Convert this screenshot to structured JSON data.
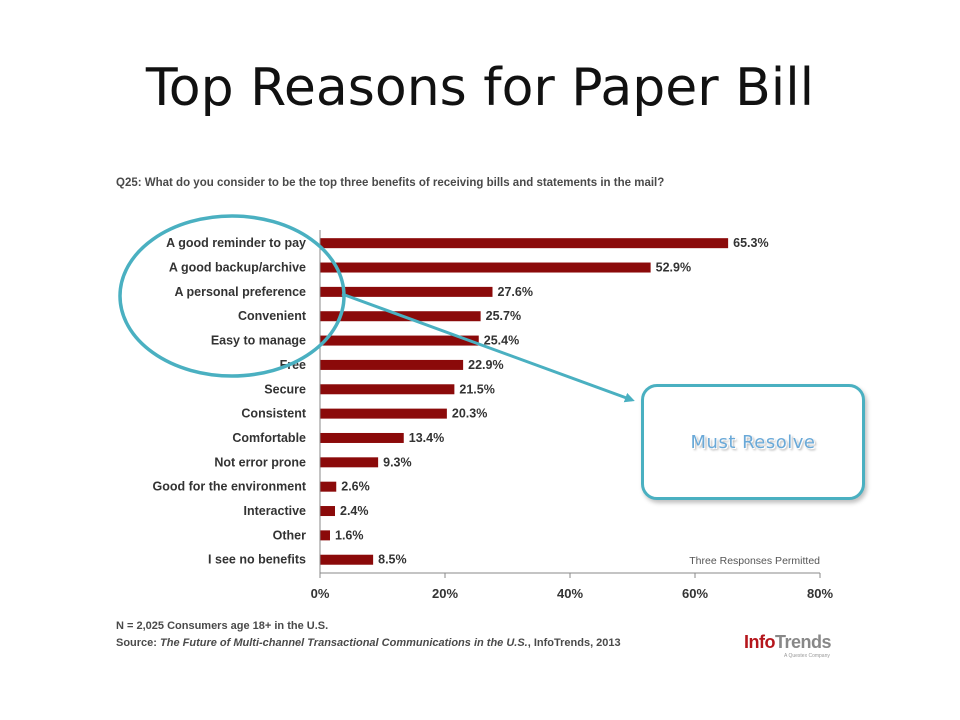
{
  "slide": {
    "title": "Top Reasons for Paper Bill"
  },
  "chart_data": {
    "type": "bar",
    "orientation": "horizontal",
    "question": "Q25: What do you consider to be the top three benefits of receiving bills and statements in the mail?",
    "categories": [
      "A good reminder to pay",
      "A good backup/archive",
      "A personal preference",
      "Convenient",
      "Easy to manage",
      "Free",
      "Secure",
      "Consistent",
      "Comfortable",
      "Not error prone",
      "Good for the environment",
      "Interactive",
      "Other",
      "I see no benefits"
    ],
    "values": [
      65.3,
      52.9,
      27.6,
      25.7,
      25.4,
      22.9,
      21.5,
      20.3,
      13.4,
      9.3,
      2.6,
      2.4,
      1.6,
      8.5
    ],
    "value_labels": [
      "65.3%",
      "52.9%",
      "27.6%",
      "25.7%",
      "25.4%",
      "22.9%",
      "21.5%",
      "20.3%",
      "13.4%",
      "9.3%",
      "2.6%",
      "2.4%",
      "1.6%",
      "8.5%"
    ],
    "xlim": [
      0,
      80
    ],
    "x_ticks": [
      0,
      20,
      40,
      60,
      80
    ],
    "x_tick_labels": [
      "0%",
      "20%",
      "40%",
      "60%",
      "80%"
    ],
    "note": "Three Responses Permitted",
    "bar_color": "#8b0a0a",
    "grid": false
  },
  "footnotes": {
    "sample": "N = 2,025 Consumers age 18+ in the U.S.",
    "source_prefix": "Source: ",
    "source_title": "The Future of Multi-channel Transactional Communications in the U.S.",
    "source_suffix": ", InfoTrends, 2013"
  },
  "logo": {
    "part1": "Info",
    "part2": "Trends",
    "tagline": "A Questex Company"
  },
  "callout": {
    "label": "Must Resolve",
    "color": "#4ab0c1"
  }
}
